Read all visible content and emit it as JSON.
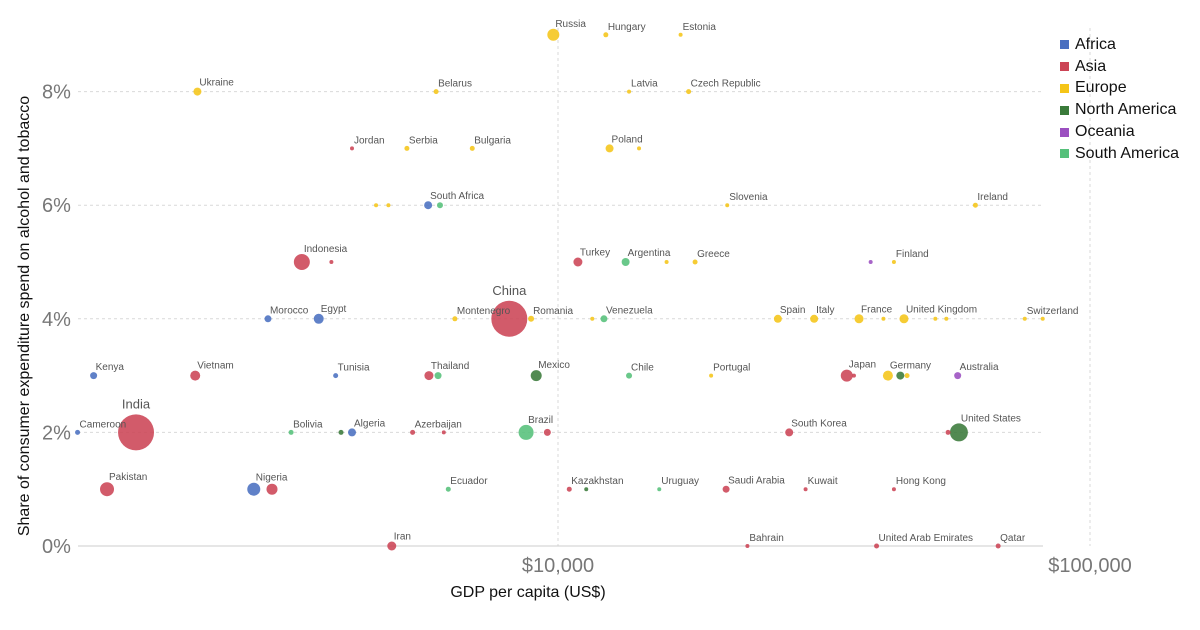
{
  "chart_data": {
    "type": "scatter",
    "xlabel": "GDP per capita (US$)",
    "ylabel": "Share of consumer expenditure spend on alcohol and tobacco",
    "x_scale": "log",
    "xlim": [
      1000,
      140000
    ],
    "ylim": [
      0,
      9
    ],
    "x_ticks": [
      {
        "value": 10000,
        "label": "$10,000"
      },
      {
        "value": 100000,
        "label": "$100,000"
      }
    ],
    "y_ticks": [
      {
        "value": 0,
        "label": "0%"
      },
      {
        "value": 2,
        "label": "2%"
      },
      {
        "value": 4,
        "label": "4%"
      },
      {
        "value": 6,
        "label": "6%"
      },
      {
        "value": 8,
        "label": "8%"
      }
    ],
    "grid": true,
    "legend_position": "top-right",
    "regions": [
      {
        "name": "Africa",
        "color": "#4a6fc0"
      },
      {
        "name": "Asia",
        "color": "#cc4455"
      },
      {
        "name": "Europe",
        "color": "#f5c518"
      },
      {
        "name": "North America",
        "color": "#3a7a3a"
      },
      {
        "name": "Oceania",
        "color": "#9b4fc0"
      },
      {
        "name": "South America",
        "color": "#55c07a"
      }
    ],
    "points": [
      {
        "label": "Russia",
        "x": 9800,
        "y": 9,
        "region": "Europe",
        "size": 6
      },
      {
        "label": "Hungary",
        "x": 12300,
        "y": 9,
        "region": "Europe",
        "size": 2.5
      },
      {
        "label": "Estonia",
        "x": 17000,
        "y": 9,
        "region": "Europe",
        "size": 2
      },
      {
        "label": "Ukraine",
        "x": 2100,
        "y": 8,
        "region": "Europe",
        "size": 4
      },
      {
        "label": "Belarus",
        "x": 5900,
        "y": 8,
        "region": "Europe",
        "size": 2.5
      },
      {
        "label": "Latvia",
        "x": 13600,
        "y": 8,
        "region": "Europe",
        "size": 2
      },
      {
        "label": "Czech Republic",
        "x": 17600,
        "y": 8,
        "region": "Europe",
        "size": 2.5
      },
      {
        "label": "Jordan",
        "x": 4100,
        "y": 7,
        "region": "Asia",
        "size": 2
      },
      {
        "label": "Serbia",
        "x": 5200,
        "y": 7,
        "region": "Europe",
        "size": 2.5
      },
      {
        "label": "Bulgaria",
        "x": 6900,
        "y": 7,
        "region": "Europe",
        "size": 2.5
      },
      {
        "label": "Poland",
        "x": 12500,
        "y": 7,
        "region": "Europe",
        "size": 4
      },
      {
        "label": "",
        "x": 14200,
        "y": 7,
        "region": "Europe",
        "size": 2
      },
      {
        "label": "Slovenia",
        "x": 20800,
        "y": 6,
        "region": "Europe",
        "size": 2
      },
      {
        "label": "Ireland",
        "x": 60900,
        "y": 6,
        "region": "Europe",
        "size": 2.5
      },
      {
        "label": "",
        "x": 4550,
        "y": 6,
        "region": "Europe",
        "size": 2
      },
      {
        "label": "",
        "x": 4800,
        "y": 6,
        "region": "Europe",
        "size": 2
      },
      {
        "label": "South Africa",
        "x": 5700,
        "y": 6,
        "region": "Africa",
        "size": 4
      },
      {
        "label": "",
        "x": 6000,
        "y": 6,
        "region": "South America",
        "size": 3
      },
      {
        "label": "Indonesia",
        "x": 3300,
        "y": 5,
        "region": "Asia",
        "size": 8
      },
      {
        "label": "",
        "x": 3750,
        "y": 5,
        "region": "Asia",
        "size": 2
      },
      {
        "label": "Turkey",
        "x": 10900,
        "y": 5,
        "region": "Asia",
        "size": 4.5
      },
      {
        "label": "Argentina",
        "x": 13400,
        "y": 5,
        "region": "South America",
        "size": 4
      },
      {
        "label": "",
        "x": 16000,
        "y": 5,
        "region": "Europe",
        "size": 2
      },
      {
        "label": "Greece",
        "x": 18100,
        "y": 5,
        "region": "Europe",
        "size": 2.5
      },
      {
        "label": "Finland",
        "x": 42800,
        "y": 5,
        "region": "Europe",
        "size": 2
      },
      {
        "label": "",
        "x": 38700,
        "y": 5,
        "region": "Oceania",
        "size": 2
      },
      {
        "label": "Morocco",
        "x": 2850,
        "y": 4,
        "region": "Africa",
        "size": 3.5
      },
      {
        "label": "Egypt",
        "x": 3550,
        "y": 4,
        "region": "Africa",
        "size": 5
      },
      {
        "label": "Montenegro",
        "x": 6400,
        "y": 4,
        "region": "Europe",
        "size": 2.5
      },
      {
        "label": "China",
        "x": 8100,
        "y": 4,
        "region": "Asia",
        "size": 18
      },
      {
        "label": "Romania",
        "x": 8900,
        "y": 4,
        "region": "Europe",
        "size": 3
      },
      {
        "label": "",
        "x": 11600,
        "y": 4,
        "region": "Europe",
        "size": 2
      },
      {
        "label": "Venezuela",
        "x": 12200,
        "y": 4,
        "region": "South America",
        "size": 3.5
      },
      {
        "label": "Spain",
        "x": 25900,
        "y": 4,
        "region": "Europe",
        "size": 4
      },
      {
        "label": "Italy",
        "x": 30300,
        "y": 4,
        "region": "Europe",
        "size": 4
      },
      {
        "label": "France",
        "x": 36800,
        "y": 4,
        "region": "Europe",
        "size": 4.5
      },
      {
        "label": "",
        "x": 40900,
        "y": 4,
        "region": "Europe",
        "size": 2
      },
      {
        "label": "United Kingdom",
        "x": 44700,
        "y": 4,
        "region": "Europe",
        "size": 4.5
      },
      {
        "label": "",
        "x": 51200,
        "y": 4,
        "region": "Europe",
        "size": 2
      },
      {
        "label": "",
        "x": 53700,
        "y": 4,
        "region": "Europe",
        "size": 2
      },
      {
        "label": "Switzerland",
        "x": 75400,
        "y": 4,
        "region": "Europe",
        "size": 2
      },
      {
        "label": "",
        "x": 81500,
        "y": 4,
        "region": "Europe",
        "size": 2
      },
      {
        "label": "Kenya",
        "x": 1340,
        "y": 3,
        "region": "Africa",
        "size": 3.5
      },
      {
        "label": "Vietnam",
        "x": 2080,
        "y": 3,
        "region": "Asia",
        "size": 5
      },
      {
        "label": "Tunisia",
        "x": 3820,
        "y": 3,
        "region": "Africa",
        "size": 2.5
      },
      {
        "label": "Thailand",
        "x": 5720,
        "y": 3,
        "region": "Asia",
        "size": 4.5
      },
      {
        "label": "",
        "x": 5950,
        "y": 3,
        "region": "South America",
        "size": 3.5
      },
      {
        "label": "Mexico",
        "x": 9100,
        "y": 3,
        "region": "North America",
        "size": 5.5
      },
      {
        "label": "Chile",
        "x": 13600,
        "y": 3,
        "region": "South America",
        "size": 3
      },
      {
        "label": "Portugal",
        "x": 19400,
        "y": 3,
        "region": "Europe",
        "size": 2
      },
      {
        "label": "Japan",
        "x": 34900,
        "y": 3,
        "region": "Asia",
        "size": 6
      },
      {
        "label": "",
        "x": 36000,
        "y": 3,
        "region": "Asia",
        "size": 2
      },
      {
        "label": "Germany",
        "x": 41700,
        "y": 3,
        "region": "Europe",
        "size": 5
      },
      {
        "label": "",
        "x": 44000,
        "y": 3,
        "region": "North America",
        "size": 4
      },
      {
        "label": "",
        "x": 45300,
        "y": 3,
        "region": "Europe",
        "size": 2.5
      },
      {
        "label": "Australia",
        "x": 56400,
        "y": 3,
        "region": "Oceania",
        "size": 3.5
      },
      {
        "label": "Cameroon",
        "x": 1250,
        "y": 2,
        "region": "Africa",
        "size": 2.5
      },
      {
        "label": "India",
        "x": 1610,
        "y": 2,
        "region": "Asia",
        "size": 18
      },
      {
        "label": "Bolivia",
        "x": 3150,
        "y": 2,
        "region": "South America",
        "size": 2.5
      },
      {
        "label": "",
        "x": 3910,
        "y": 2,
        "region": "North America",
        "size": 2.5
      },
      {
        "label": "Algeria",
        "x": 4100,
        "y": 2,
        "region": "Africa",
        "size": 4
      },
      {
        "label": "Azerbaijan",
        "x": 5330,
        "y": 2,
        "region": "Asia",
        "size": 2.5
      },
      {
        "label": "",
        "x": 6100,
        "y": 2,
        "region": "Asia",
        "size": 2
      },
      {
        "label": "Brazil",
        "x": 8710,
        "y": 2,
        "region": "South America",
        "size": 7.5
      },
      {
        "label": "",
        "x": 9550,
        "y": 2,
        "region": "Asia",
        "size": 3.5
      },
      {
        "label": "South Korea",
        "x": 27200,
        "y": 2,
        "region": "Asia",
        "size": 4
      },
      {
        "label": "",
        "x": 54100,
        "y": 2,
        "region": "Asia",
        "size": 2.5
      },
      {
        "label": "United States",
        "x": 56700,
        "y": 2,
        "region": "North America",
        "size": 9
      },
      {
        "label": "Pakistan",
        "x": 1420,
        "y": 1,
        "region": "Asia",
        "size": 7
      },
      {
        "label": "Nigeria",
        "x": 2680,
        "y": 1,
        "region": "Africa",
        "size": 6.5
      },
      {
        "label": "",
        "x": 2900,
        "y": 1,
        "region": "Asia",
        "size": 5.5
      },
      {
        "label": "Ecuador",
        "x": 6220,
        "y": 1,
        "region": "South America",
        "size": 2.5
      },
      {
        "label": "Kazakhstan",
        "x": 10500,
        "y": 1,
        "region": "Asia",
        "size": 2.5
      },
      {
        "label": "",
        "x": 11300,
        "y": 1,
        "region": "North America",
        "size": 2
      },
      {
        "label": "Uruguay",
        "x": 15500,
        "y": 1,
        "region": "South America",
        "size": 2
      },
      {
        "label": "Saudi Arabia",
        "x": 20700,
        "y": 1,
        "region": "Asia",
        "size": 3.5
      },
      {
        "label": "Kuwait",
        "x": 29200,
        "y": 1,
        "region": "Asia",
        "size": 2
      },
      {
        "label": "Hong Kong",
        "x": 42800,
        "y": 1,
        "region": "Asia",
        "size": 2
      },
      {
        "label": "Iran",
        "x": 4870,
        "y": 0,
        "region": "Asia",
        "size": 4.5
      },
      {
        "label": "Bahrain",
        "x": 22700,
        "y": 0,
        "region": "Asia",
        "size": 2
      },
      {
        "label": "United Arab Emirates",
        "x": 39700,
        "y": 0,
        "region": "Asia",
        "size": 2.5
      },
      {
        "label": "Qatar",
        "x": 67200,
        "y": 0,
        "region": "Asia",
        "size": 2.5
      }
    ]
  }
}
